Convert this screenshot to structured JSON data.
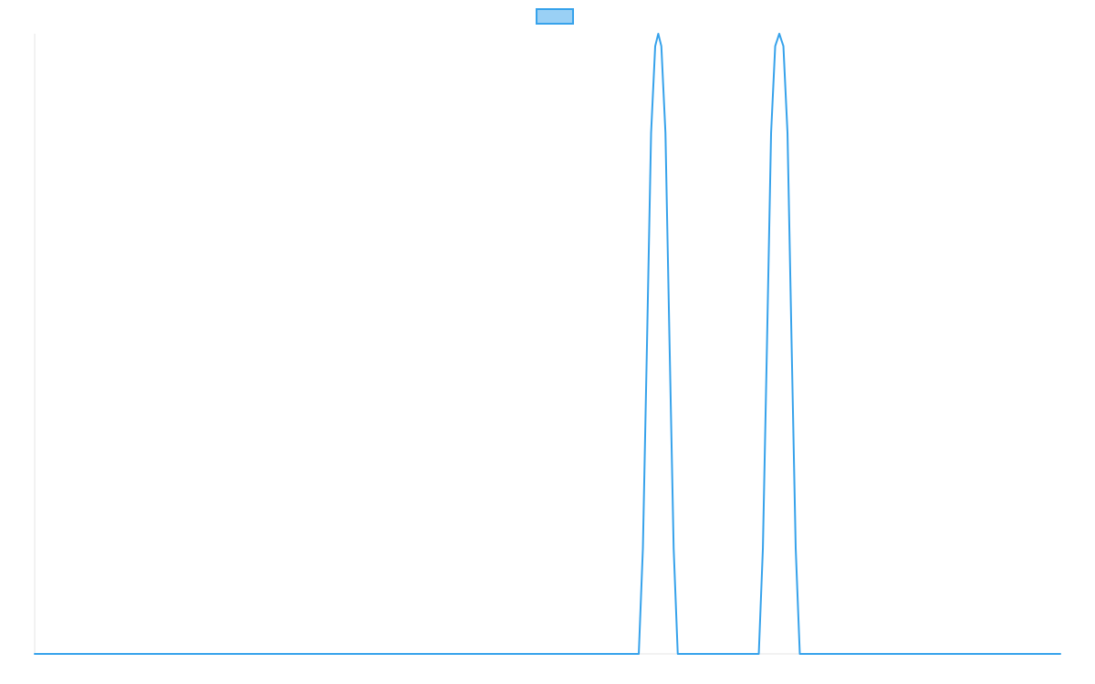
{
  "chart_data": {
    "type": "line",
    "title": "",
    "xlabel": "",
    "ylabel": "",
    "legend": {
      "position": "top-center",
      "entries": [
        {
          "label": "",
          "fill_color": "#9AD0F5",
          "border_color": "#36A2EB"
        }
      ]
    },
    "grid": false,
    "xlim": [
      0,
      100
    ],
    "ylim": [
      0,
      1
    ],
    "series": [
      {
        "color": "#36A2EB",
        "points": [
          [
            0,
            0
          ],
          [
            58.9,
            0
          ],
          [
            59.3,
            0.17
          ],
          [
            59.7,
            0.5
          ],
          [
            60.1,
            0.84
          ],
          [
            60.5,
            0.98
          ],
          [
            60.8,
            1.0
          ],
          [
            61.1,
            0.98
          ],
          [
            61.5,
            0.84
          ],
          [
            61.9,
            0.5
          ],
          [
            62.3,
            0.17
          ],
          [
            62.7,
            0
          ],
          [
            70.6,
            0
          ],
          [
            71.0,
            0.17
          ],
          [
            71.4,
            0.5
          ],
          [
            71.8,
            0.84
          ],
          [
            72.2,
            0.98
          ],
          [
            72.6,
            1.0
          ],
          [
            73.0,
            0.98
          ],
          [
            73.4,
            0.84
          ],
          [
            73.8,
            0.5
          ],
          [
            74.2,
            0.17
          ],
          [
            74.6,
            0
          ],
          [
            100,
            0
          ]
        ]
      }
    ]
  }
}
